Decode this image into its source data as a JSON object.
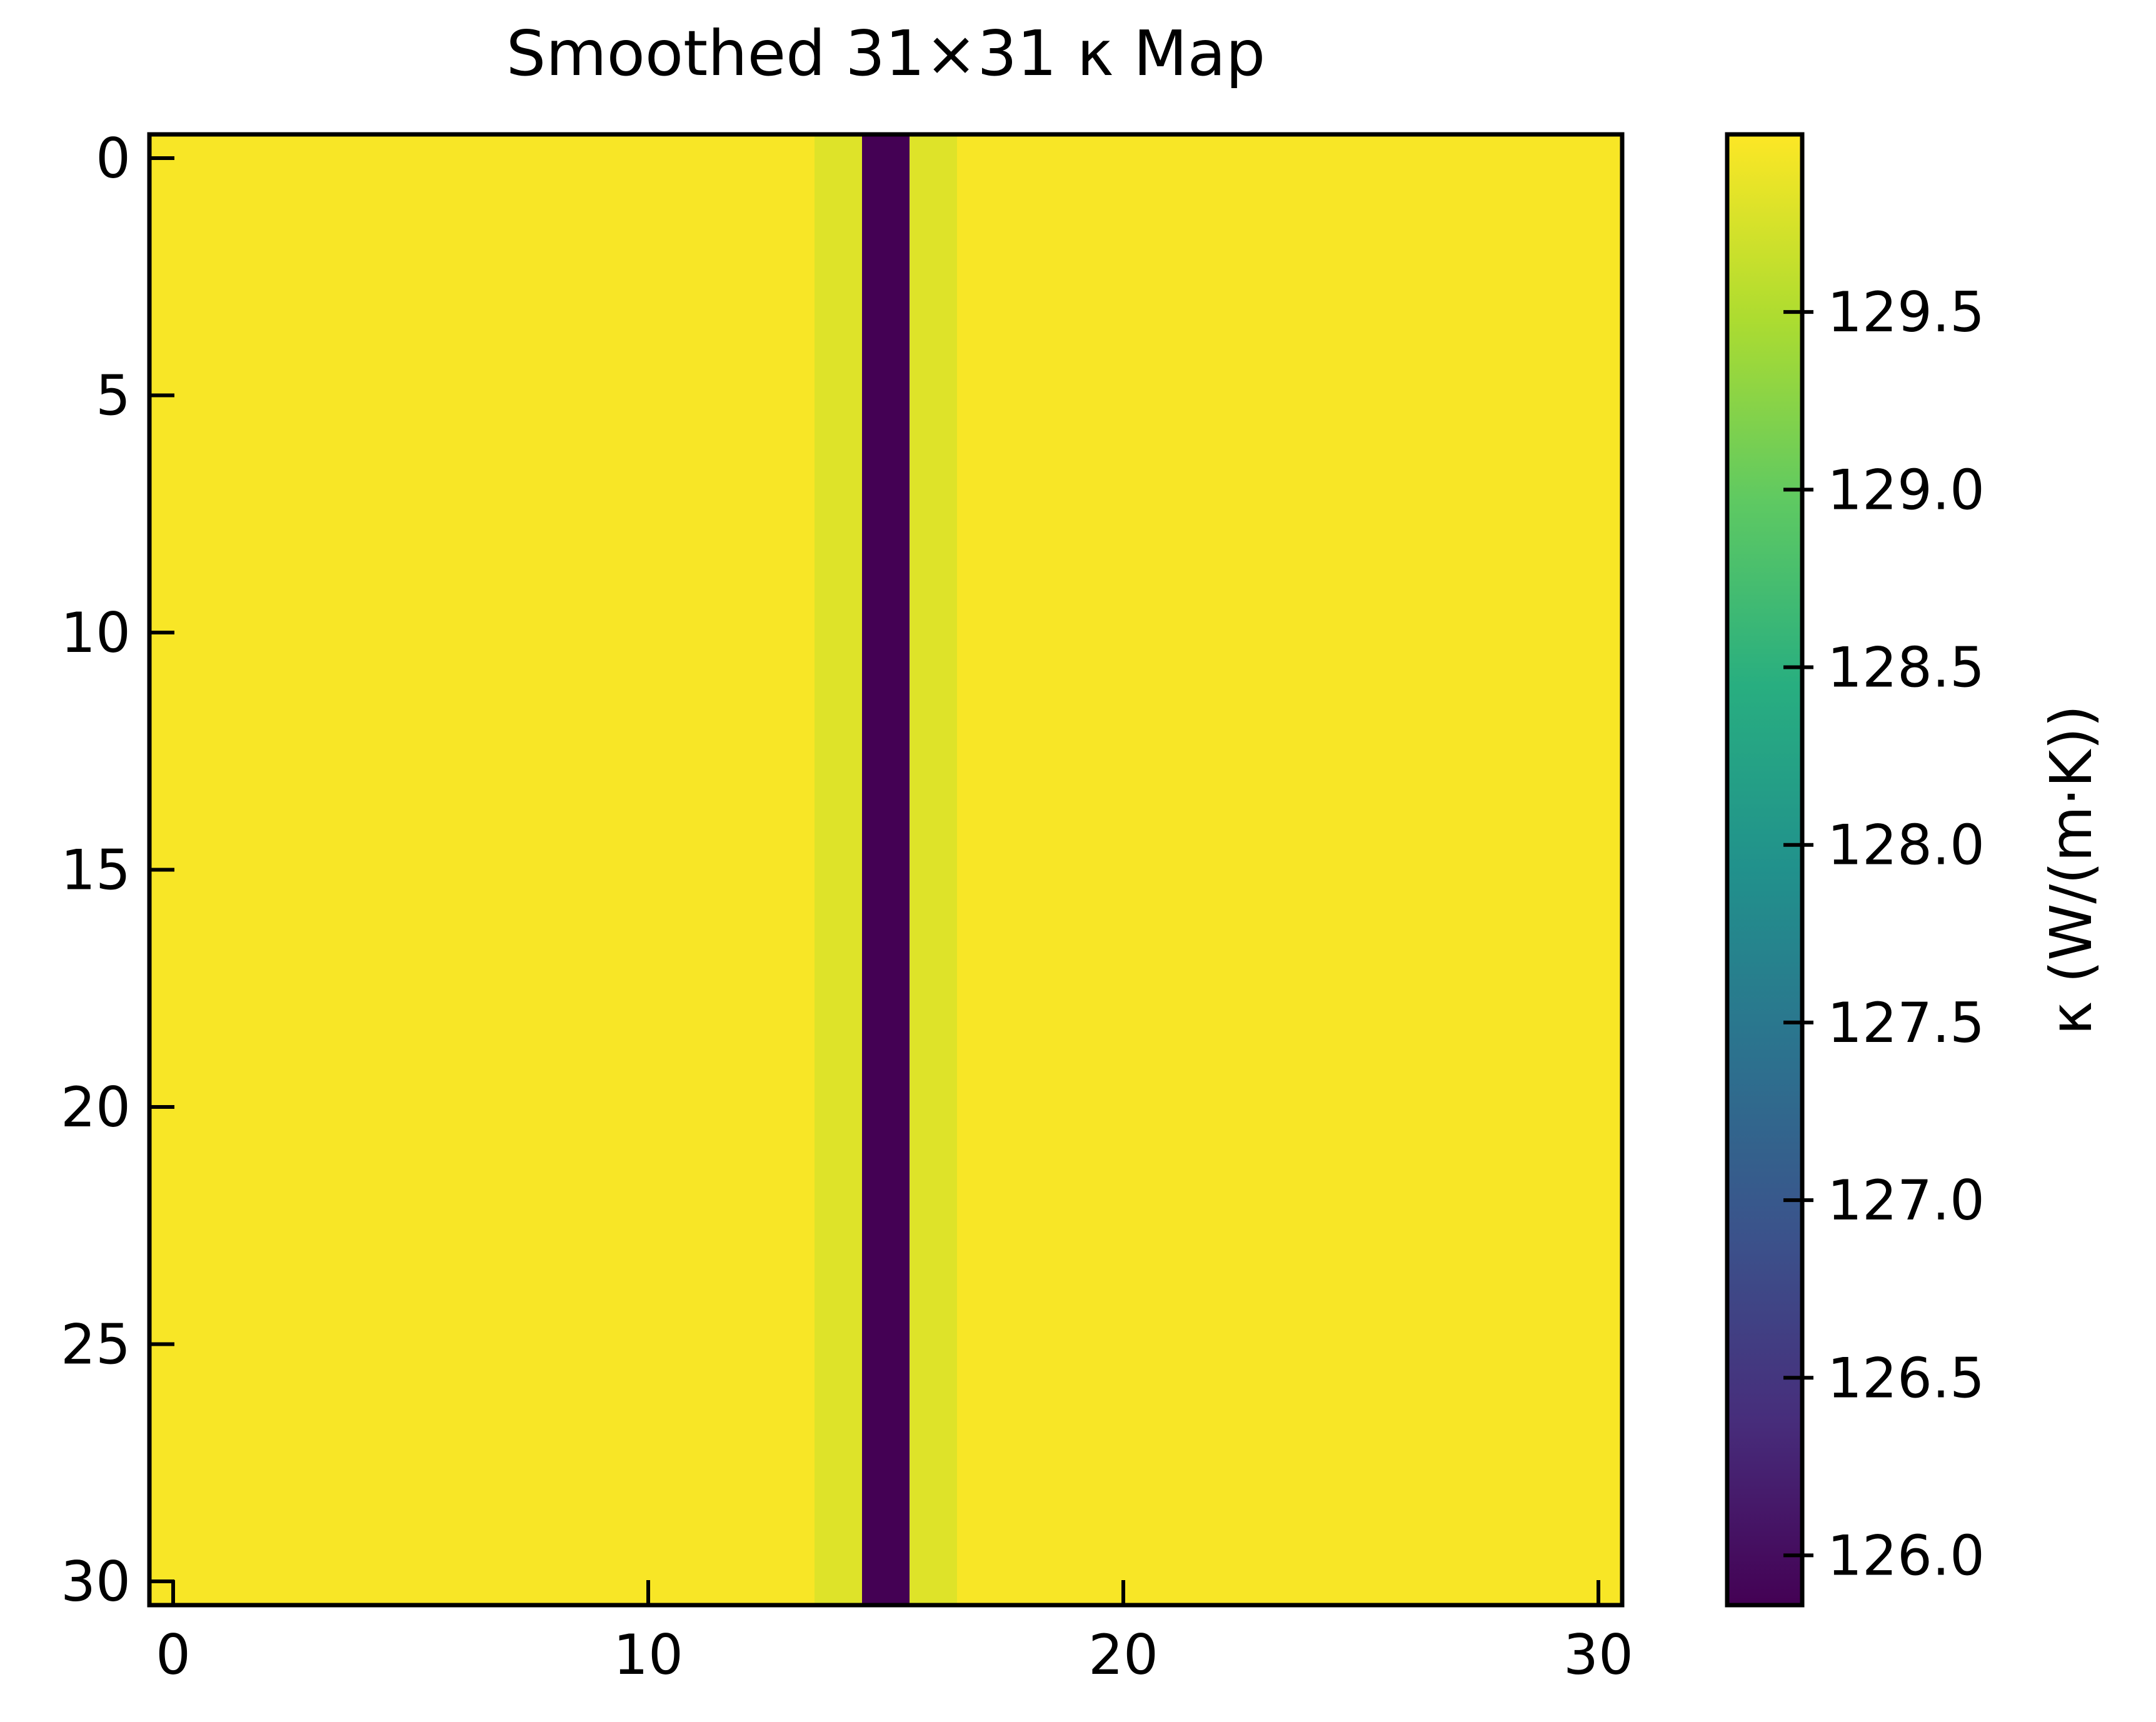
{
  "chart_data": {
    "type": "heatmap",
    "title": "Smoothed 31×31 κ Map",
    "colormap": "viridis",
    "colorbar_label": "κ (W/(m·K))",
    "xlim": [
      -0.5,
      30.5
    ],
    "xticks": [
      0,
      10,
      20,
      30
    ],
    "ylim": [
      30.5,
      -0.5
    ],
    "yticks": [
      0,
      5,
      10,
      15,
      20,
      25,
      30
    ],
    "clim": [
      125.86,
      130.0
    ],
    "cticks": [
      {
        "value": 126,
        "label": "126.0"
      },
      126.5,
      {
        "value": 127,
        "label": "127.0"
      },
      127.5,
      {
        "value": 128,
        "label": "128.0"
      },
      128.5,
      {
        "value": 129,
        "label": "129.0"
      },
      129.5
    ],
    "z": [
      [
        129.97,
        129.97,
        129.97,
        129.97,
        129.97,
        129.97,
        129.97,
        129.97,
        129.97,
        129.97,
        129.97,
        129.97,
        129.97,
        129.97,
        129.8,
        125.86,
        129.8,
        129.97,
        129.97,
        129.97,
        129.97,
        129.97,
        129.97,
        129.97,
        129.97,
        129.97,
        129.97,
        129.97,
        129.97,
        129.97,
        129.97
      ],
      [
        129.97,
        129.97,
        129.97,
        129.97,
        129.97,
        129.97,
        129.97,
        129.97,
        129.97,
        129.97,
        129.97,
        129.97,
        129.97,
        129.97,
        129.8,
        125.86,
        129.8,
        129.97,
        129.97,
        129.97,
        129.97,
        129.97,
        129.97,
        129.97,
        129.97,
        129.97,
        129.97,
        129.97,
        129.97,
        129.97,
        129.97
      ],
      [
        129.97,
        129.97,
        129.97,
        129.97,
        129.97,
        129.97,
        129.97,
        129.97,
        129.97,
        129.97,
        129.97,
        129.97,
        129.97,
        129.97,
        129.8,
        125.86,
        129.8,
        129.97,
        129.97,
        129.97,
        129.97,
        129.97,
        129.97,
        129.97,
        129.97,
        129.97,
        129.97,
        129.97,
        129.97,
        129.97,
        129.97
      ],
      [
        129.97,
        129.97,
        129.97,
        129.97,
        129.97,
        129.97,
        129.97,
        129.97,
        129.97,
        129.97,
        129.97,
        129.97,
        129.97,
        129.97,
        129.8,
        125.86,
        129.8,
        129.97,
        129.97,
        129.97,
        129.97,
        129.97,
        129.97,
        129.97,
        129.97,
        129.97,
        129.97,
        129.97,
        129.97,
        129.97,
        129.97
      ],
      [
        129.97,
        129.97,
        129.97,
        129.97,
        129.97,
        129.97,
        129.97,
        129.97,
        129.97,
        129.97,
        129.97,
        129.97,
        129.97,
        129.97,
        129.8,
        125.86,
        129.8,
        129.97,
        129.97,
        129.97,
        129.97,
        129.97,
        129.97,
        129.97,
        129.97,
        129.97,
        129.97,
        129.97,
        129.97,
        129.97,
        129.97
      ],
      [
        129.97,
        129.97,
        129.97,
        129.97,
        129.97,
        129.97,
        129.97,
        129.97,
        129.97,
        129.97,
        129.97,
        129.97,
        129.97,
        129.97,
        129.8,
        125.86,
        129.8,
        129.97,
        129.97,
        129.97,
        129.97,
        129.97,
        129.97,
        129.97,
        129.97,
        129.97,
        129.97,
        129.97,
        129.97,
        129.97,
        129.97
      ],
      [
        129.97,
        129.97,
        129.97,
        129.97,
        129.97,
        129.97,
        129.97,
        129.97,
        129.97,
        129.97,
        129.97,
        129.97,
        129.97,
        129.97,
        129.8,
        125.86,
        129.8,
        129.97,
        129.97,
        129.97,
        129.97,
        129.97,
        129.97,
        129.97,
        129.97,
        129.97,
        129.97,
        129.97,
        129.97,
        129.97,
        129.97
      ],
      [
        129.97,
        129.97,
        129.97,
        129.97,
        129.97,
        129.97,
        129.97,
        129.97,
        129.97,
        129.97,
        129.97,
        129.97,
        129.97,
        129.97,
        129.8,
        125.86,
        129.8,
        129.97,
        129.97,
        129.97,
        129.97,
        129.97,
        129.97,
        129.97,
        129.97,
        129.97,
        129.97,
        129.97,
        129.97,
        129.97,
        129.97
      ],
      [
        129.97,
        129.97,
        129.97,
        129.97,
        129.97,
        129.97,
        129.97,
        129.97,
        129.97,
        129.97,
        129.97,
        129.97,
        129.97,
        129.97,
        129.8,
        125.86,
        129.8,
        129.97,
        129.97,
        129.97,
        129.97,
        129.97,
        129.97,
        129.97,
        129.97,
        129.97,
        129.97,
        129.97,
        129.97,
        129.97,
        129.97
      ],
      [
        129.97,
        129.97,
        129.97,
        129.97,
        129.97,
        129.97,
        129.97,
        129.97,
        129.97,
        129.97,
        129.97,
        129.97,
        129.97,
        129.97,
        129.8,
        125.86,
        129.8,
        129.97,
        129.97,
        129.97,
        129.97,
        129.97,
        129.97,
        129.97,
        129.97,
        129.97,
        129.97,
        129.97,
        129.97,
        129.97,
        129.97
      ],
      [
        129.97,
        129.97,
        129.97,
        129.97,
        129.97,
        129.97,
        129.97,
        129.97,
        129.97,
        129.97,
        129.97,
        129.97,
        129.97,
        129.97,
        129.8,
        125.86,
        129.8,
        129.97,
        129.97,
        129.97,
        129.97,
        129.97,
        129.97,
        129.97,
        129.97,
        129.97,
        129.97,
        129.97,
        129.97,
        129.97,
        129.97
      ],
      [
        129.97,
        129.97,
        129.97,
        129.97,
        129.97,
        129.97,
        129.97,
        129.97,
        129.97,
        129.97,
        129.97,
        129.97,
        129.97,
        129.97,
        129.8,
        125.86,
        129.8,
        129.97,
        129.97,
        129.97,
        129.97,
        129.97,
        129.97,
        129.97,
        129.97,
        129.97,
        129.97,
        129.97,
        129.97,
        129.97,
        129.97
      ],
      [
        129.97,
        129.97,
        129.97,
        129.97,
        129.97,
        129.97,
        129.97,
        129.97,
        129.97,
        129.97,
        129.97,
        129.97,
        129.97,
        129.97,
        129.8,
        125.86,
        129.8,
        129.97,
        129.97,
        129.97,
        129.97,
        129.97,
        129.97,
        129.97,
        129.97,
        129.97,
        129.97,
        129.97,
        129.97,
        129.97,
        129.97
      ],
      [
        129.97,
        129.97,
        129.97,
        129.97,
        129.97,
        129.97,
        129.97,
        129.97,
        129.97,
        129.97,
        129.97,
        129.97,
        129.97,
        129.97,
        129.8,
        125.86,
        129.8,
        129.97,
        129.97,
        129.97,
        129.97,
        129.97,
        129.97,
        129.97,
        129.97,
        129.97,
        129.97,
        129.97,
        129.97,
        129.97,
        129.97
      ],
      [
        129.97,
        129.97,
        129.97,
        129.97,
        129.97,
        129.97,
        129.97,
        129.97,
        129.97,
        129.97,
        129.97,
        129.97,
        129.97,
        129.97,
        129.8,
        125.86,
        129.8,
        129.97,
        129.97,
        129.97,
        129.97,
        129.97,
        129.97,
        129.97,
        129.97,
        129.97,
        129.97,
        129.97,
        129.97,
        129.97,
        129.97
      ],
      [
        129.97,
        129.97,
        129.97,
        129.97,
        129.97,
        129.97,
        129.97,
        129.97,
        129.97,
        129.97,
        129.97,
        129.97,
        129.97,
        129.97,
        129.8,
        125.86,
        129.8,
        129.97,
        129.97,
        129.97,
        129.97,
        129.97,
        129.97,
        129.97,
        129.97,
        129.97,
        129.97,
        129.97,
        129.97,
        129.97,
        129.97
      ],
      [
        129.97,
        129.97,
        129.97,
        129.97,
        129.97,
        129.97,
        129.97,
        129.97,
        129.97,
        129.97,
        129.97,
        129.97,
        129.97,
        129.97,
        129.8,
        125.86,
        129.8,
        129.97,
        129.97,
        129.97,
        129.97,
        129.97,
        129.97,
        129.97,
        129.97,
        129.97,
        129.97,
        129.97,
        129.97,
        129.97,
        129.97
      ],
      [
        129.97,
        129.97,
        129.97,
        129.97,
        129.97,
        129.97,
        129.97,
        129.97,
        129.97,
        129.97,
        129.97,
        129.97,
        129.97,
        129.97,
        129.8,
        125.86,
        129.8,
        129.97,
        129.97,
        129.97,
        129.97,
        129.97,
        129.97,
        129.97,
        129.97,
        129.97,
        129.97,
        129.97,
        129.97,
        129.97,
        129.97
      ],
      [
        129.97,
        129.97,
        129.97,
        129.97,
        129.97,
        129.97,
        129.97,
        129.97,
        129.97,
        129.97,
        129.97,
        129.97,
        129.97,
        129.97,
        129.8,
        125.86,
        129.8,
        129.97,
        129.97,
        129.97,
        129.97,
        129.97,
        129.97,
        129.97,
        129.97,
        129.97,
        129.97,
        129.97,
        129.97,
        129.97,
        129.97
      ],
      [
        129.97,
        129.97,
        129.97,
        129.97,
        129.97,
        129.97,
        129.97,
        129.97,
        129.97,
        129.97,
        129.97,
        129.97,
        129.97,
        129.97,
        129.8,
        125.86,
        129.8,
        129.97,
        129.97,
        129.97,
        129.97,
        129.97,
        129.97,
        129.97,
        129.97,
        129.97,
        129.97,
        129.97,
        129.97,
        129.97,
        129.97
      ],
      [
        129.97,
        129.97,
        129.97,
        129.97,
        129.97,
        129.97,
        129.97,
        129.97,
        129.97,
        129.97,
        129.97,
        129.97,
        129.97,
        129.97,
        129.8,
        125.86,
        129.8,
        129.97,
        129.97,
        129.97,
        129.97,
        129.97,
        129.97,
        129.97,
        129.97,
        129.97,
        129.97,
        129.97,
        129.97,
        129.97,
        129.97
      ],
      [
        129.97,
        129.97,
        129.97,
        129.97,
        129.97,
        129.97,
        129.97,
        129.97,
        129.97,
        129.97,
        129.97,
        129.97,
        129.97,
        129.97,
        129.8,
        125.86,
        129.8,
        129.97,
        129.97,
        129.97,
        129.97,
        129.97,
        129.97,
        129.97,
        129.97,
        129.97,
        129.97,
        129.97,
        129.97,
        129.97,
        129.97
      ],
      [
        129.97,
        129.97,
        129.97,
        129.97,
        129.97,
        129.97,
        129.97,
        129.97,
        129.97,
        129.97,
        129.97,
        129.97,
        129.97,
        129.97,
        129.8,
        125.86,
        129.8,
        129.97,
        129.97,
        129.97,
        129.97,
        129.97,
        129.97,
        129.97,
        129.97,
        129.97,
        129.97,
        129.97,
        129.97,
        129.97,
        129.97
      ],
      [
        129.97,
        129.97,
        129.97,
        129.97,
        129.97,
        129.97,
        129.97,
        129.97,
        129.97,
        129.97,
        129.97,
        129.97,
        129.97,
        129.97,
        129.8,
        125.86,
        129.8,
        129.97,
        129.97,
        129.97,
        129.97,
        129.97,
        129.97,
        129.97,
        129.97,
        129.97,
        129.97,
        129.97,
        129.97,
        129.97,
        129.97
      ],
      [
        129.97,
        129.97,
        129.97,
        129.97,
        129.97,
        129.97,
        129.97,
        129.97,
        129.97,
        129.97,
        129.97,
        129.97,
        129.97,
        129.97,
        129.8,
        125.86,
        129.8,
        129.97,
        129.97,
        129.97,
        129.97,
        129.97,
        129.97,
        129.97,
        129.97,
        129.97,
        129.97,
        129.97,
        129.97,
        129.97,
        129.97
      ],
      [
        129.97,
        129.97,
        129.97,
        129.97,
        129.97,
        129.97,
        129.97,
        129.97,
        129.97,
        129.97,
        129.97,
        129.97,
        129.97,
        129.97,
        129.8,
        125.86,
        129.8,
        129.97,
        129.97,
        129.97,
        129.97,
        129.97,
        129.97,
        129.97,
        129.97,
        129.97,
        129.97,
        129.97,
        129.97,
        129.97,
        129.97
      ],
      [
        129.97,
        129.97,
        129.97,
        129.97,
        129.97,
        129.97,
        129.97,
        129.97,
        129.97,
        129.97,
        129.97,
        129.97,
        129.97,
        129.97,
        129.8,
        125.86,
        129.8,
        129.97,
        129.97,
        129.97,
        129.97,
        129.97,
        129.97,
        129.97,
        129.97,
        129.97,
        129.97,
        129.97,
        129.97,
        129.97,
        129.97
      ],
      [
        129.97,
        129.97,
        129.97,
        129.97,
        129.97,
        129.97,
        129.97,
        129.97,
        129.97,
        129.97,
        129.97,
        129.97,
        129.97,
        129.97,
        129.8,
        125.86,
        129.8,
        129.97,
        129.97,
        129.97,
        129.97,
        129.97,
        129.97,
        129.97,
        129.97,
        129.97,
        129.97,
        129.97,
        129.97,
        129.97,
        129.97
      ],
      [
        129.97,
        129.97,
        129.97,
        129.97,
        129.97,
        129.97,
        129.97,
        129.97,
        129.97,
        129.97,
        129.97,
        129.97,
        129.97,
        129.97,
        129.8,
        125.86,
        129.8,
        129.97,
        129.97,
        129.97,
        129.97,
        129.97,
        129.97,
        129.97,
        129.97,
        129.97,
        129.97,
        129.97,
        129.97,
        129.97,
        129.97
      ],
      [
        129.97,
        129.97,
        129.97,
        129.97,
        129.97,
        129.97,
        129.97,
        129.97,
        129.97,
        129.97,
        129.97,
        129.97,
        129.97,
        129.97,
        129.8,
        125.86,
        129.8,
        129.97,
        129.97,
        129.97,
        129.97,
        129.97,
        129.97,
        129.97,
        129.97,
        129.97,
        129.97,
        129.97,
        129.97,
        129.97,
        129.97
      ],
      [
        129.97,
        129.97,
        129.97,
        129.97,
        129.97,
        129.97,
        129.97,
        129.97,
        129.97,
        129.97,
        129.97,
        129.97,
        129.97,
        129.97,
        129.8,
        125.86,
        129.8,
        129.97,
        129.97,
        129.97,
        129.97,
        129.97,
        129.97,
        129.97,
        129.97,
        129.97,
        129.97,
        129.97,
        129.97,
        129.97,
        129.97
      ]
    ]
  }
}
